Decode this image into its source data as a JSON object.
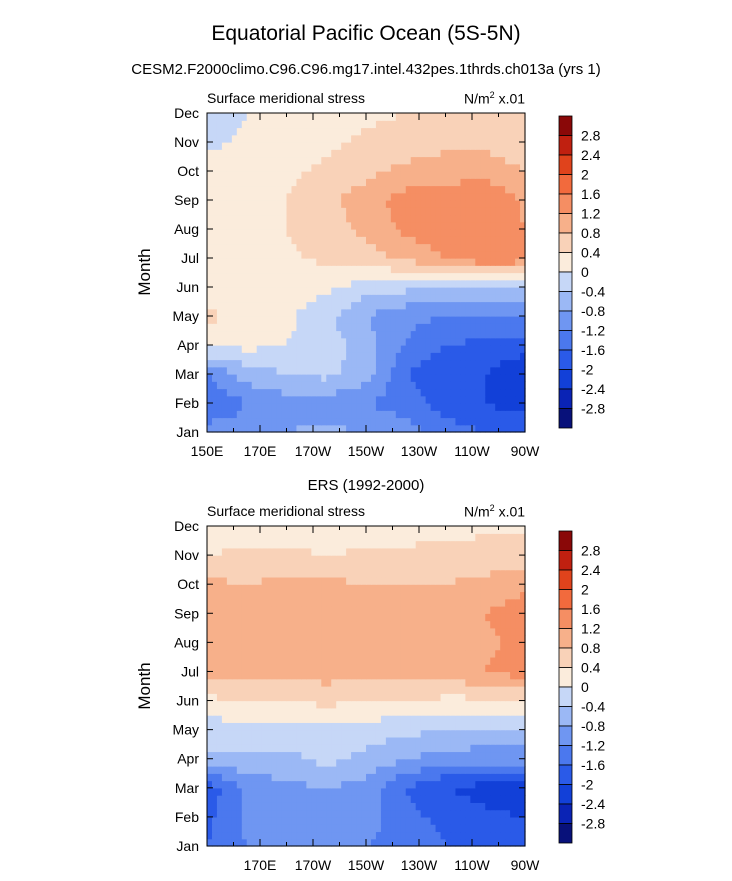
{
  "figure": {
    "title": "Equatorial Pacific Ocean (5S-5N)",
    "subtitle": "CESM2.F2000climo.C96.C96.mg17.intel.432pes.1thrds.ch013a (yrs 1)",
    "panel2_title": "ERS (1992-2000)"
  },
  "chart_data": [
    {
      "type": "heatmap",
      "left_label": "Surface meridional stress",
      "right_label_main": "N/m",
      "right_label_sup": "2",
      "right_label_tail": " x.01",
      "ylabel": "Month",
      "months": [
        "Jan",
        "Feb",
        "Mar",
        "Apr",
        "May",
        "Jun",
        "Jul",
        "Aug",
        "Sep",
        "Oct",
        "Nov",
        "Dec"
      ],
      "x_ticks": [
        "150E",
        "170E",
        "170W",
        "150W",
        "130W",
        "110W",
        "90W"
      ],
      "x_range_deg": [
        150,
        270
      ],
      "colorbar_levels": [
        "2.8",
        "2.4",
        "2",
        "1.6",
        "1.2",
        "0.8",
        "0.4",
        "0",
        "-0.4",
        "-0.8",
        "-1.2",
        "-1.6",
        "-2",
        "-2.4",
        "-2.8"
      ],
      "colors": [
        "#08117a",
        "#0a23b5",
        "#1240d8",
        "#2a5ae8",
        "#4b78ee",
        "#6f96f2",
        "#9bb8f5",
        "#c6d7f7",
        "#fbecdc",
        "#f9d2b8",
        "#f7b08a",
        "#f58e63",
        "#f26a3d",
        "#e0431c",
        "#c02010",
        "#8a0808"
      ],
      "lon": [
        150,
        165,
        180,
        195,
        210,
        225,
        240,
        255,
        270
      ],
      "values": [
        [
          -1.0,
          -1.0,
          -0.8,
          -0.7,
          -0.8,
          -1.0,
          -1.4,
          -1.6,
          -1.6
        ],
        [
          -1.6,
          -1.2,
          -1.0,
          -1.0,
          -1.2,
          -1.4,
          -1.8,
          -2.0,
          -2.2
        ],
        [
          -1.2,
          -0.6,
          -0.4,
          -0.3,
          -0.6,
          -1.6,
          -2.0,
          -2.0,
          -2.4
        ],
        [
          0.1,
          0.1,
          0.0,
          -0.2,
          -0.6,
          -1.2,
          -1.6,
          -1.7,
          -1.8
        ],
        [
          0.5,
          0.2,
          0.1,
          -0.3,
          -0.8,
          -1.1,
          -1.2,
          -1.3,
          -1.2
        ],
        [
          0.2,
          0.2,
          0.2,
          0.1,
          -0.2,
          -0.3,
          -0.5,
          -0.4,
          -0.4
        ],
        [
          0.2,
          0.3,
          0.3,
          0.5,
          0.6,
          0.9,
          1.2,
          1.5,
          1.4
        ],
        [
          0.3,
          0.3,
          0.4,
          0.6,
          0.9,
          1.3,
          1.4,
          1.5,
          1.2
        ],
        [
          0.3,
          0.3,
          0.4,
          0.7,
          1.0,
          1.4,
          1.5,
          1.6,
          1.1
        ],
        [
          0.2,
          0.2,
          0.3,
          0.5,
          0.7,
          0.9,
          1.0,
          1.0,
          0.8
        ],
        [
          -0.1,
          0.1,
          0.2,
          0.3,
          0.5,
          0.6,
          0.7,
          0.7,
          0.6
        ],
        [
          -0.3,
          0.0,
          0.1,
          0.2,
          0.3,
          0.4,
          0.5,
          0.6,
          0.7
        ]
      ]
    },
    {
      "type": "heatmap",
      "left_label": "Surface meridional stress",
      "right_label_main": "N/m",
      "right_label_sup": "2",
      "right_label_tail": " x.01",
      "ylabel": "Month",
      "months": [
        "Jan",
        "Feb",
        "Mar",
        "Apr",
        "May",
        "Jun",
        "Jul",
        "Aug",
        "Sep",
        "Oct",
        "Nov",
        "Dec"
      ],
      "x_ticks": [
        "",
        "170E",
        "170W",
        "150W",
        "130W",
        "110W",
        "90W"
      ],
      "x_range_deg": [
        150,
        270
      ],
      "colorbar_levels": [
        "2.8",
        "2.4",
        "2",
        "1.6",
        "1.2",
        "0.8",
        "0.4",
        "0",
        "-0.4",
        "-0.8",
        "-1.2",
        "-1.6",
        "-2",
        "-2.4",
        "-2.8"
      ],
      "colors": [
        "#08117a",
        "#0a23b5",
        "#1240d8",
        "#2a5ae8",
        "#4b78ee",
        "#6f96f2",
        "#9bb8f5",
        "#c6d7f7",
        "#fbecdc",
        "#f9d2b8",
        "#f7b08a",
        "#f58e63",
        "#f26a3d",
        "#e0431c",
        "#c02010",
        "#8a0808"
      ],
      "lon": [
        150,
        165,
        180,
        195,
        210,
        225,
        240,
        255,
        270
      ],
      "values": [
        [
          -1.6,
          -1.2,
          -1.0,
          -1.0,
          -1.2,
          -1.4,
          -1.6,
          -1.8,
          -1.8
        ],
        [
          -1.7,
          -1.1,
          -1.0,
          -0.9,
          -1.0,
          -1.5,
          -1.7,
          -1.9,
          -2.0
        ],
        [
          -1.9,
          -1.1,
          -0.9,
          -0.8,
          -1.0,
          -1.6,
          -2.0,
          -2.2,
          -2.3
        ],
        [
          -0.5,
          -0.5,
          -0.5,
          -0.3,
          -0.5,
          -0.8,
          -1.0,
          -1.0,
          -1.0
        ],
        [
          -0.2,
          -0.2,
          -0.2,
          -0.1,
          -0.2,
          -0.3,
          -0.4,
          -0.5,
          -0.5
        ],
        [
          0.3,
          0.4,
          0.4,
          0.5,
          0.4,
          0.4,
          0.3,
          0.3,
          0.3
        ],
        [
          0.9,
          0.9,
          0.9,
          1.0,
          0.9,
          1.0,
          1.0,
          1.2,
          1.4
        ],
        [
          1.0,
          0.9,
          1.0,
          1.0,
          1.0,
          1.0,
          1.0,
          1.1,
          1.3
        ],
        [
          1.2,
          1.0,
          1.0,
          1.1,
          1.1,
          1.0,
          1.1,
          1.2,
          1.4
        ],
        [
          0.9,
          0.8,
          0.9,
          0.9,
          0.8,
          0.8,
          0.8,
          0.9,
          1.1
        ],
        [
          0.4,
          0.5,
          0.5,
          0.4,
          0.5,
          0.5,
          0.6,
          0.6,
          0.6
        ],
        [
          0.1,
          0.1,
          0.2,
          0.1,
          0.0,
          0.2,
          0.2,
          0.3,
          0.3
        ]
      ]
    }
  ]
}
